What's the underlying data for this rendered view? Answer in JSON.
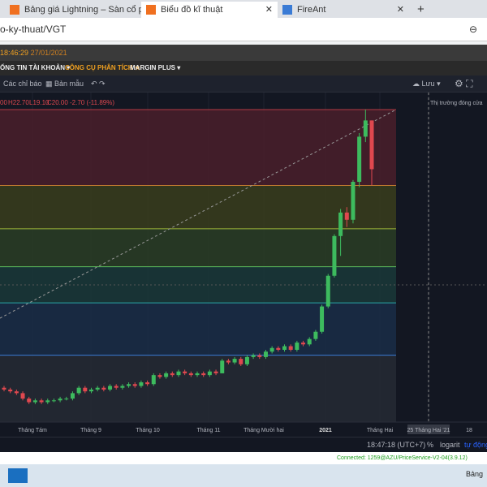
{
  "tabs": [
    "Bảng giá Lightning – Sàn cổ p",
    "Biểu đồ kĩ thuật",
    "FireAnt"
  ],
  "address": "o-ky-thuat/VGT",
  "clock": {
    "time": "18:46:29",
    "date": "27/01/2021"
  },
  "menu": [
    "ỐNG TIN TÀI KHOẢN",
    "CÔNG CỤ PHÂN TÍCH",
    "MARGIN PLUS"
  ],
  "toolbar": {
    "indicators": "Các chỉ báo",
    "templates": "Bản mẫu",
    "save": "Lưu"
  },
  "legend": {
    "open": "00",
    "high": "H22.70",
    "low": "L19.10",
    "close": "C20.00",
    "change": "-2.70 (-11.89%)"
  },
  "market_note": "Thị trường đóng cửa",
  "bottom_bar": {
    "time": "18:47:18 (UTC+7)",
    "percent": "%",
    "log": "logarit",
    "auto": "tự động"
  },
  "status": "Connected: 1259@AZU/PriceService-V2-04(3.9.12)",
  "taskbar": "Bảng",
  "chart_data": {
    "type": "candlestick",
    "x_labels": [
      "Tháng Tám",
      "Tháng 9",
      "Tháng 10",
      "Tháng 11",
      "Tháng Mười hai",
      "2021",
      "Tháng Hai",
      "25 Tháng Hai '21",
      "18"
    ],
    "ylim": [
      6,
      24.2
    ],
    "up_color": "#3dbb5e",
    "down_color": "#e0484f",
    "fib_levels": [
      23.3,
      19.1,
      16.7,
      14.6,
      12.6,
      9.7
    ],
    "candles": [
      [
        7.9,
        8.0,
        7.7,
        7.8
      ],
      [
        7.8,
        7.9,
        7.6,
        7.7
      ],
      [
        7.7,
        7.8,
        7.5,
        7.6
      ],
      [
        7.6,
        7.7,
        7.2,
        7.3
      ],
      [
        7.3,
        7.4,
        7.0,
        7.1
      ],
      [
        7.1,
        7.3,
        7.0,
        7.2
      ],
      [
        7.2,
        7.3,
        7.0,
        7.1
      ],
      [
        7.1,
        7.3,
        7.0,
        7.2
      ],
      [
        7.2,
        7.3,
        7.1,
        7.2
      ],
      [
        7.2,
        7.4,
        7.1,
        7.3
      ],
      [
        7.3,
        7.4,
        7.2,
        7.3
      ],
      [
        7.3,
        7.7,
        7.2,
        7.6
      ],
      [
        7.6,
        8.0,
        7.5,
        7.9
      ],
      [
        7.9,
        8.0,
        7.6,
        7.7
      ],
      [
        7.7,
        7.9,
        7.6,
        7.8
      ],
      [
        7.8,
        8.0,
        7.7,
        7.9
      ],
      [
        7.9,
        8.0,
        7.7,
        7.8
      ],
      [
        7.8,
        8.1,
        7.7,
        8.0
      ],
      [
        8.0,
        8.1,
        7.8,
        7.9
      ],
      [
        7.9,
        8.1,
        7.8,
        8.0
      ],
      [
        8.0,
        8.2,
        7.9,
        8.1
      ],
      [
        8.1,
        8.2,
        7.9,
        8.0
      ],
      [
        8.0,
        8.3,
        7.9,
        8.2
      ],
      [
        8.2,
        8.3,
        8.0,
        8.1
      ],
      [
        8.1,
        8.7,
        8.0,
        8.6
      ],
      [
        8.6,
        8.7,
        8.4,
        8.5
      ],
      [
        8.5,
        8.8,
        8.4,
        8.7
      ],
      [
        8.7,
        8.8,
        8.5,
        8.6
      ],
      [
        8.6,
        8.9,
        8.5,
        8.8
      ],
      [
        8.8,
        8.9,
        8.6,
        8.7
      ],
      [
        8.7,
        8.8,
        8.5,
        8.6
      ],
      [
        8.6,
        8.8,
        8.5,
        8.7
      ],
      [
        8.7,
        8.8,
        8.5,
        8.6
      ],
      [
        8.6,
        8.9,
        8.5,
        8.8
      ],
      [
        8.8,
        8.9,
        8.6,
        8.7
      ],
      [
        8.7,
        9.5,
        8.7,
        9.4
      ],
      [
        9.4,
        9.5,
        9.2,
        9.3
      ],
      [
        9.3,
        9.6,
        9.2,
        9.5
      ],
      [
        9.5,
        9.6,
        9.1,
        9.2
      ],
      [
        9.2,
        9.7,
        9.1,
        9.6
      ],
      [
        9.6,
        9.8,
        9.5,
        9.7
      ],
      [
        9.7,
        9.8,
        9.5,
        9.6
      ],
      [
        9.6,
        10.0,
        9.5,
        9.9
      ],
      [
        9.9,
        10.2,
        9.8,
        10.1
      ],
      [
        10.1,
        10.2,
        9.9,
        10.0
      ],
      [
        10.0,
        10.3,
        9.9,
        10.2
      ],
      [
        10.2,
        10.3,
        9.9,
        10.0
      ],
      [
        10.0,
        10.5,
        9.9,
        10.4
      ],
      [
        10.4,
        10.5,
        10.2,
        10.3
      ],
      [
        10.3,
        10.7,
        10.2,
        10.6
      ],
      [
        10.6,
        11.1,
        10.5,
        11.0
      ],
      [
        11.0,
        12.5,
        10.9,
        12.4
      ],
      [
        12.4,
        14.2,
        12.3,
        14.1
      ],
      [
        14.1,
        16.4,
        14.0,
        16.3
      ],
      [
        16.3,
        17.8,
        15.2,
        17.6
      ],
      [
        17.6,
        17.9,
        16.8,
        17.2
      ],
      [
        17.2,
        19.4,
        17.0,
        19.3
      ],
      [
        19.3,
        22.0,
        19.0,
        21.8
      ],
      [
        21.8,
        23.3,
        21.5,
        22.7
      ],
      [
        22.7,
        22.7,
        19.1,
        20.0
      ]
    ]
  }
}
